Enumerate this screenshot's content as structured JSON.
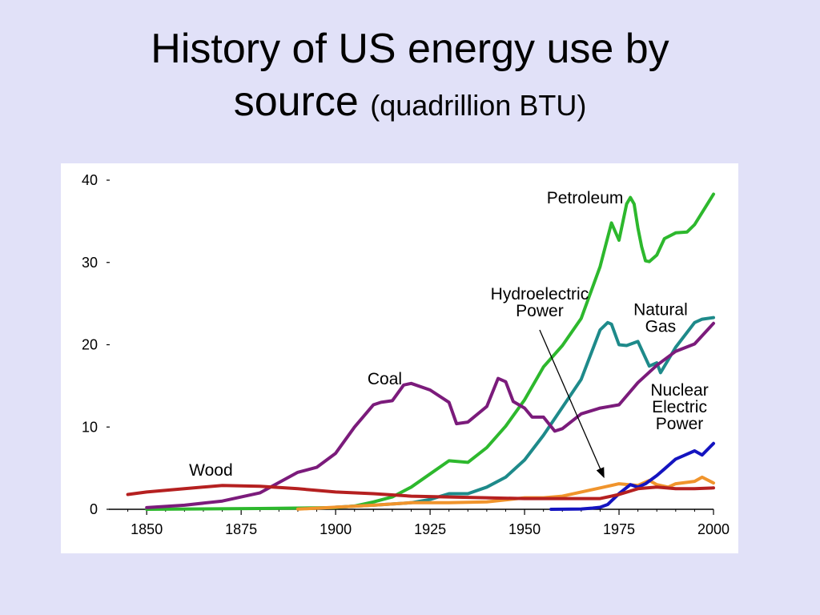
{
  "title": {
    "line1": "History of US energy use by",
    "line2_main": "source",
    "line2_sub": "(quadrillion BTU)"
  },
  "chart_data": {
    "type": "line",
    "xlim": [
      1840,
      2000
    ],
    "ylim": [
      0,
      40
    ],
    "x_ticks": [
      1850,
      1875,
      1900,
      1925,
      1950,
      1975,
      2000
    ],
    "y_ticks": [
      0,
      10,
      20,
      30,
      40
    ],
    "grid": false,
    "legend": "none (series labelled directly on chart)",
    "annotations": [
      {
        "text_lines": [
          "Petroleum"
        ],
        "anchor_x": 1966,
        "anchor_y": 37.2
      },
      {
        "text_lines": [
          "Natural",
          "Gas"
        ],
        "anchor_x": 1986,
        "anchor_y": 23.6
      },
      {
        "text_lines": [
          "Coal"
        ],
        "anchor_x": 1913,
        "anchor_y": 15.2
      },
      {
        "text_lines": [
          "Hydroelectric",
          "Power"
        ],
        "anchor_x": 1954,
        "anchor_y": 25.5
      },
      {
        "text_lines": [
          "Nuclear",
          "Electric",
          "Power"
        ],
        "anchor_x": 1991,
        "anchor_y": 13.8
      },
      {
        "text_lines": [
          "Wood"
        ],
        "anchor_x": 1867,
        "anchor_y": 4.1
      }
    ],
    "arrow": {
      "from": [
        1954,
        21.8
      ],
      "to": [
        1971,
        3.9
      ]
    },
    "series": [
      {
        "name": "Petroleum",
        "color": "#2db82d",
        "x": [
          1850,
          1880,
          1900,
          1905,
          1910,
          1915,
          1920,
          1925,
          1930,
          1935,
          1940,
          1945,
          1950,
          1955,
          1960,
          1965,
          1970,
          1973,
          1975,
          1977,
          1978,
          1979,
          1980,
          1981,
          1982,
          1983,
          1985,
          1987,
          1990,
          1993,
          1995,
          2000
        ],
        "values": [
          0,
          0.1,
          0.2,
          0.4,
          0.9,
          1.5,
          2.7,
          4.3,
          5.9,
          5.7,
          7.5,
          10.1,
          13.3,
          17.3,
          19.9,
          23.2,
          29.5,
          34.8,
          32.7,
          37.1,
          37.9,
          37.1,
          34.2,
          31.9,
          30.2,
          30.1,
          30.9,
          32.9,
          33.6,
          33.7,
          34.6,
          38.3
        ]
      },
      {
        "name": "Natural Gas",
        "color": "#1e8a8a",
        "x": [
          1900,
          1910,
          1920,
          1925,
          1930,
          1935,
          1940,
          1945,
          1950,
          1955,
          1960,
          1965,
          1970,
          1972,
          1973,
          1975,
          1977,
          1980,
          1983,
          1985,
          1986,
          1990,
          1995,
          1997,
          2000
        ],
        "values": [
          0.25,
          0.5,
          0.8,
          1.2,
          1.9,
          1.9,
          2.7,
          3.9,
          6.0,
          9.0,
          12.4,
          15.8,
          21.8,
          22.7,
          22.5,
          20.0,
          19.9,
          20.4,
          17.4,
          17.8,
          16.6,
          19.7,
          22.7,
          23.1,
          23.3
        ]
      },
      {
        "name": "Coal",
        "color": "#7b1b7b",
        "x": [
          1850,
          1860,
          1870,
          1880,
          1890,
          1895,
          1900,
          1905,
          1910,
          1912,
          1915,
          1918,
          1920,
          1925,
          1930,
          1932,
          1935,
          1940,
          1943,
          1945,
          1947,
          1950,
          1952,
          1955,
          1958,
          1960,
          1965,
          1970,
          1975,
          1980,
          1985,
          1990,
          1995,
          2000
        ],
        "values": [
          0.2,
          0.5,
          1.0,
          2.0,
          4.5,
          5.1,
          6.8,
          10.0,
          12.7,
          13.0,
          13.2,
          15.1,
          15.3,
          14.5,
          13.0,
          10.4,
          10.6,
          12.5,
          15.9,
          15.5,
          13.1,
          12.3,
          11.2,
          11.2,
          9.5,
          9.8,
          11.6,
          12.3,
          12.7,
          15.4,
          17.5,
          19.2,
          20.1,
          22.6
        ]
      },
      {
        "name": "Hydroelectric Power",
        "color": "#f0942c",
        "x": [
          1890,
          1900,
          1910,
          1920,
          1930,
          1940,
          1950,
          1955,
          1960,
          1965,
          1970,
          1975,
          1980,
          1983,
          1985,
          1988,
          1990,
          1995,
          1997,
          2000
        ],
        "values": [
          0.02,
          0.25,
          0.5,
          0.8,
          0.8,
          0.9,
          1.4,
          1.4,
          1.6,
          2.1,
          2.6,
          3.1,
          2.9,
          3.5,
          3.0,
          2.7,
          3.1,
          3.4,
          3.9,
          3.2
        ]
      },
      {
        "name": "Nuclear Electric Power",
        "color": "#1414c0",
        "x": [
          1957,
          1960,
          1965,
          1968,
          1970,
          1972,
          1975,
          1978,
          1980,
          1982,
          1985,
          1987,
          1990,
          1992,
          1995,
          1997,
          2000
        ],
        "values": [
          0,
          0.01,
          0.04,
          0.15,
          0.24,
          0.58,
          1.9,
          3.0,
          2.7,
          3.1,
          4.1,
          4.9,
          6.1,
          6.5,
          7.1,
          6.6,
          8.0
        ]
      },
      {
        "name": "Wood",
        "color": "#b52020",
        "x": [
          1845,
          1850,
          1860,
          1870,
          1880,
          1890,
          1900,
          1910,
          1920,
          1930,
          1940,
          1950,
          1960,
          1970,
          1975,
          1980,
          1985,
          1990,
          1995,
          2000
        ],
        "values": [
          1.8,
          2.1,
          2.5,
          2.9,
          2.8,
          2.5,
          2.1,
          1.9,
          1.6,
          1.5,
          1.4,
          1.3,
          1.3,
          1.3,
          1.8,
          2.5,
          2.7,
          2.5,
          2.5,
          2.6
        ]
      }
    ]
  }
}
